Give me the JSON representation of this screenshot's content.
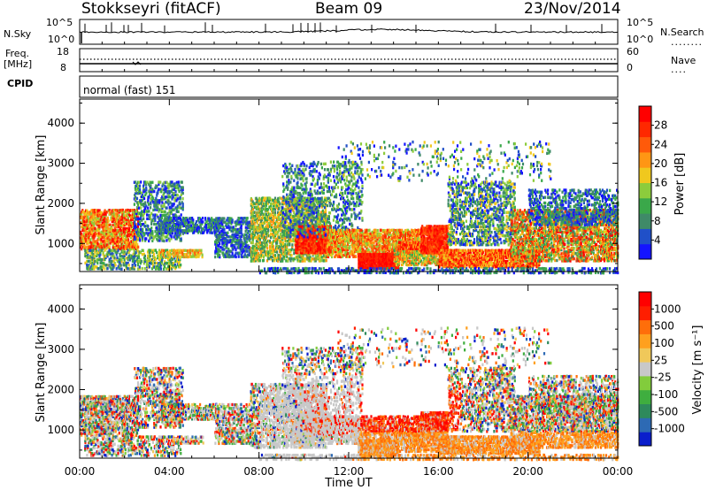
{
  "header": {
    "station": "Stokkseyri (fitACF)",
    "beam": "Beam 09",
    "date": "23/Nov/2014"
  },
  "top_panels": {
    "nsky_label": "N.Sky",
    "nsky_ticks": [
      "10^5",
      "10^0"
    ],
    "nsearch_label": "N.Search",
    "nsearch_ticks": [
      "10^5",
      "10^0"
    ],
    "freq_label": "Freq.",
    "freq_unit": "[MHz]",
    "freq_ticks": [
      "18",
      "8"
    ],
    "nave_label": "Nave",
    "nave_ticks": [
      "60",
      "0"
    ],
    "cpid_label": "CPID",
    "cpid_value": "normal (fast) 151"
  },
  "chart_data": [
    {
      "type": "heatmap",
      "name": "power",
      "ylabel": "Slant Range [km]",
      "ylim": [
        300,
        4600
      ],
      "yticks": [
        "4000",
        "3000",
        "2000",
        "1000"
      ],
      "xlim_hours": [
        0,
        24
      ],
      "colorbar": {
        "label": "Power [dB]",
        "colors": [
          "#1414ff",
          "#2050c8",
          "#3f8a68",
          "#3aa84a",
          "#8ccc3c",
          "#f0c81e",
          "#ff9614",
          "#ff5a0a",
          "#ff2800",
          "#ff0000"
        ],
        "ticks": [
          "28",
          "24",
          "20",
          "16",
          "12",
          "8",
          "4"
        ]
      }
    },
    {
      "type": "heatmap",
      "name": "velocity",
      "ylabel": "Slant Range [km]",
      "ylim": [
        300,
        4600
      ],
      "yticks": [
        "4000",
        "3000",
        "2000",
        "1000"
      ],
      "xlim_hours": [
        0,
        24
      ],
      "colorbar": {
        "label": "Velocity [m s⁻¹]",
        "colors": [
          "#0a1ecc",
          "#2d6ab4",
          "#2e8a5c",
          "#3fae3f",
          "#82cc3c",
          "#c8c8c8",
          "#f0c85a",
          "#ffa01e",
          "#ff6e0a",
          "#ff1e00",
          "#ff0000"
        ],
        "ticks": [
          "1000",
          "500",
          "100",
          "25",
          "-25",
          "-100",
          "-500",
          "-1000"
        ]
      }
    }
  ],
  "xaxis": {
    "label": "Time UT",
    "ticks": [
      "00:00",
      "04:00",
      "08:00",
      "12:00",
      "16:00",
      "20:00",
      "00:00"
    ]
  }
}
